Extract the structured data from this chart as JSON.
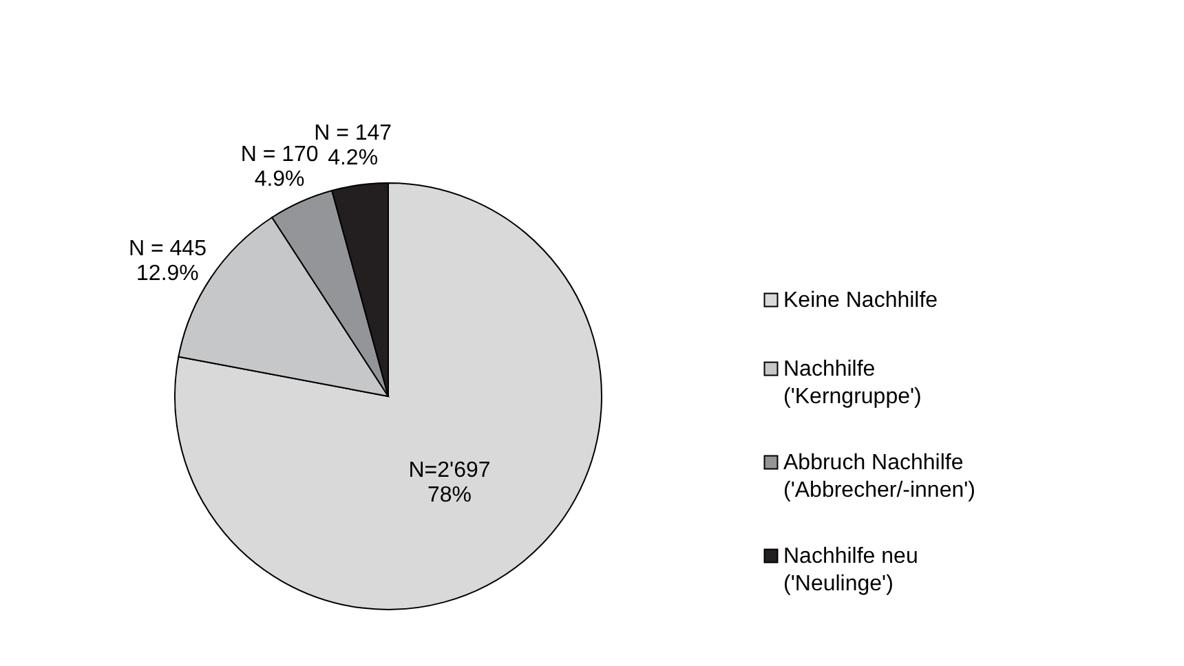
{
  "chart_data": {
    "type": "pie",
    "categories": [
      "Keine Nachhilfe",
      "Nachhilfe\n('Kerngruppe')",
      "Abbruch Nachhilfe\n('Abbrecher/-innen')",
      "Nachhilfe neu\n('Neulinge')"
    ],
    "values": [
      2697,
      445,
      170,
      147
    ],
    "colors": [
      "#d9d9da",
      "#c6c7c9",
      "#939598",
      "#231f20"
    ],
    "value_labels": [
      "N=2'697\n78%",
      "N = 445\n12.9%",
      "N = 170\n4.9%",
      "N = 147\n4.2%"
    ],
    "legend": "right"
  }
}
